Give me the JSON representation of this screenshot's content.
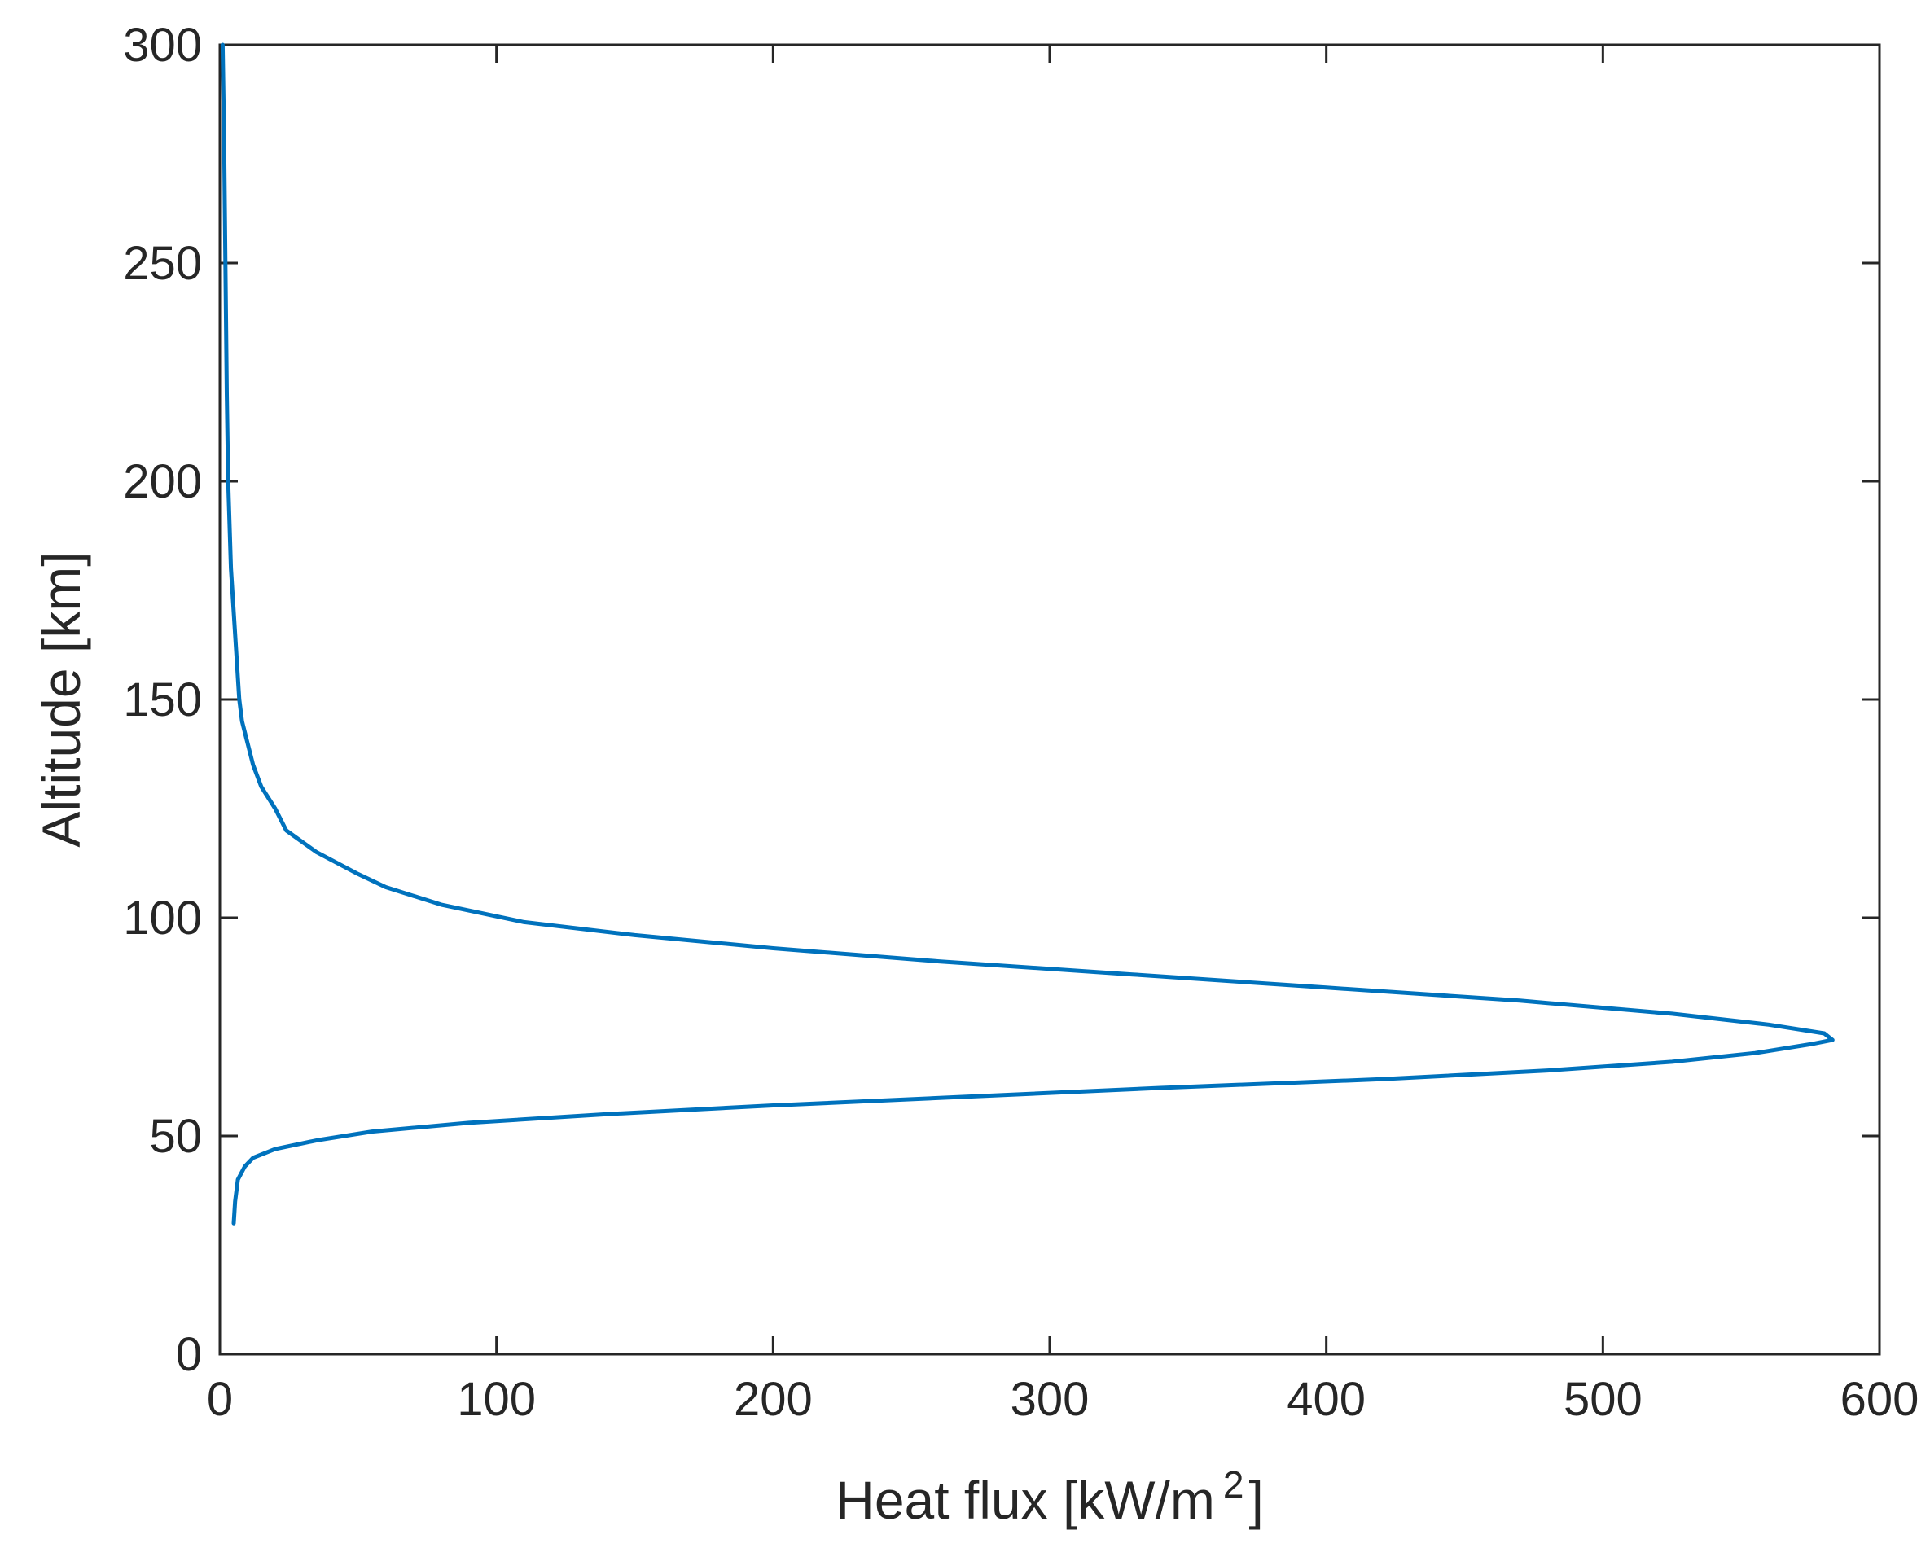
{
  "chart_data": {
    "type": "line",
    "title": "",
    "xlabel": "Heat flux [kW/m",
    "xlabel_superscript": "2",
    "xlabel_suffix": "]",
    "ylabel": "Altitude [km]",
    "xlim": [
      0,
      600
    ],
    "ylim": [
      0,
      300
    ],
    "xticks": [
      "0",
      "100",
      "200",
      "300",
      "400",
      "500",
      "600"
    ],
    "yticks": [
      "0",
      "50",
      "100",
      "150",
      "200",
      "250",
      "300"
    ],
    "grid": false,
    "legend": "none",
    "series": [
      {
        "color": "#0072BD",
        "points": [
          [
            5,
            30
          ],
          [
            5.5,
            35
          ],
          [
            6.5,
            40
          ],
          [
            9,
            43
          ],
          [
            12,
            45
          ],
          [
            20,
            47
          ],
          [
            35,
            49
          ],
          [
            55,
            51
          ],
          [
            90,
            53
          ],
          [
            140,
            55
          ],
          [
            200,
            57
          ],
          [
            270,
            59
          ],
          [
            340,
            61
          ],
          [
            420,
            63
          ],
          [
            480,
            65
          ],
          [
            525,
            67
          ],
          [
            555,
            69
          ],
          [
            575,
            71
          ],
          [
            583,
            72
          ],
          [
            580,
            73.5
          ],
          [
            560,
            75.5
          ],
          [
            525,
            78
          ],
          [
            470,
            81
          ],
          [
            400,
            84
          ],
          [
            330,
            87
          ],
          [
            260,
            90
          ],
          [
            200,
            93
          ],
          [
            150,
            96
          ],
          [
            110,
            99
          ],
          [
            80,
            103
          ],
          [
            60,
            107
          ],
          [
            50,
            110
          ],
          [
            35,
            115
          ],
          [
            24,
            120
          ],
          [
            20,
            125
          ],
          [
            15,
            130
          ],
          [
            12,
            135
          ],
          [
            10,
            140
          ],
          [
            8,
            145
          ],
          [
            7,
            150
          ],
          [
            6,
            160
          ],
          [
            5,
            170
          ],
          [
            4,
            180
          ],
          [
            3,
            200
          ],
          [
            2.5,
            220
          ],
          [
            2,
            250
          ],
          [
            1.5,
            280
          ],
          [
            1,
            300
          ]
        ]
      }
    ]
  }
}
